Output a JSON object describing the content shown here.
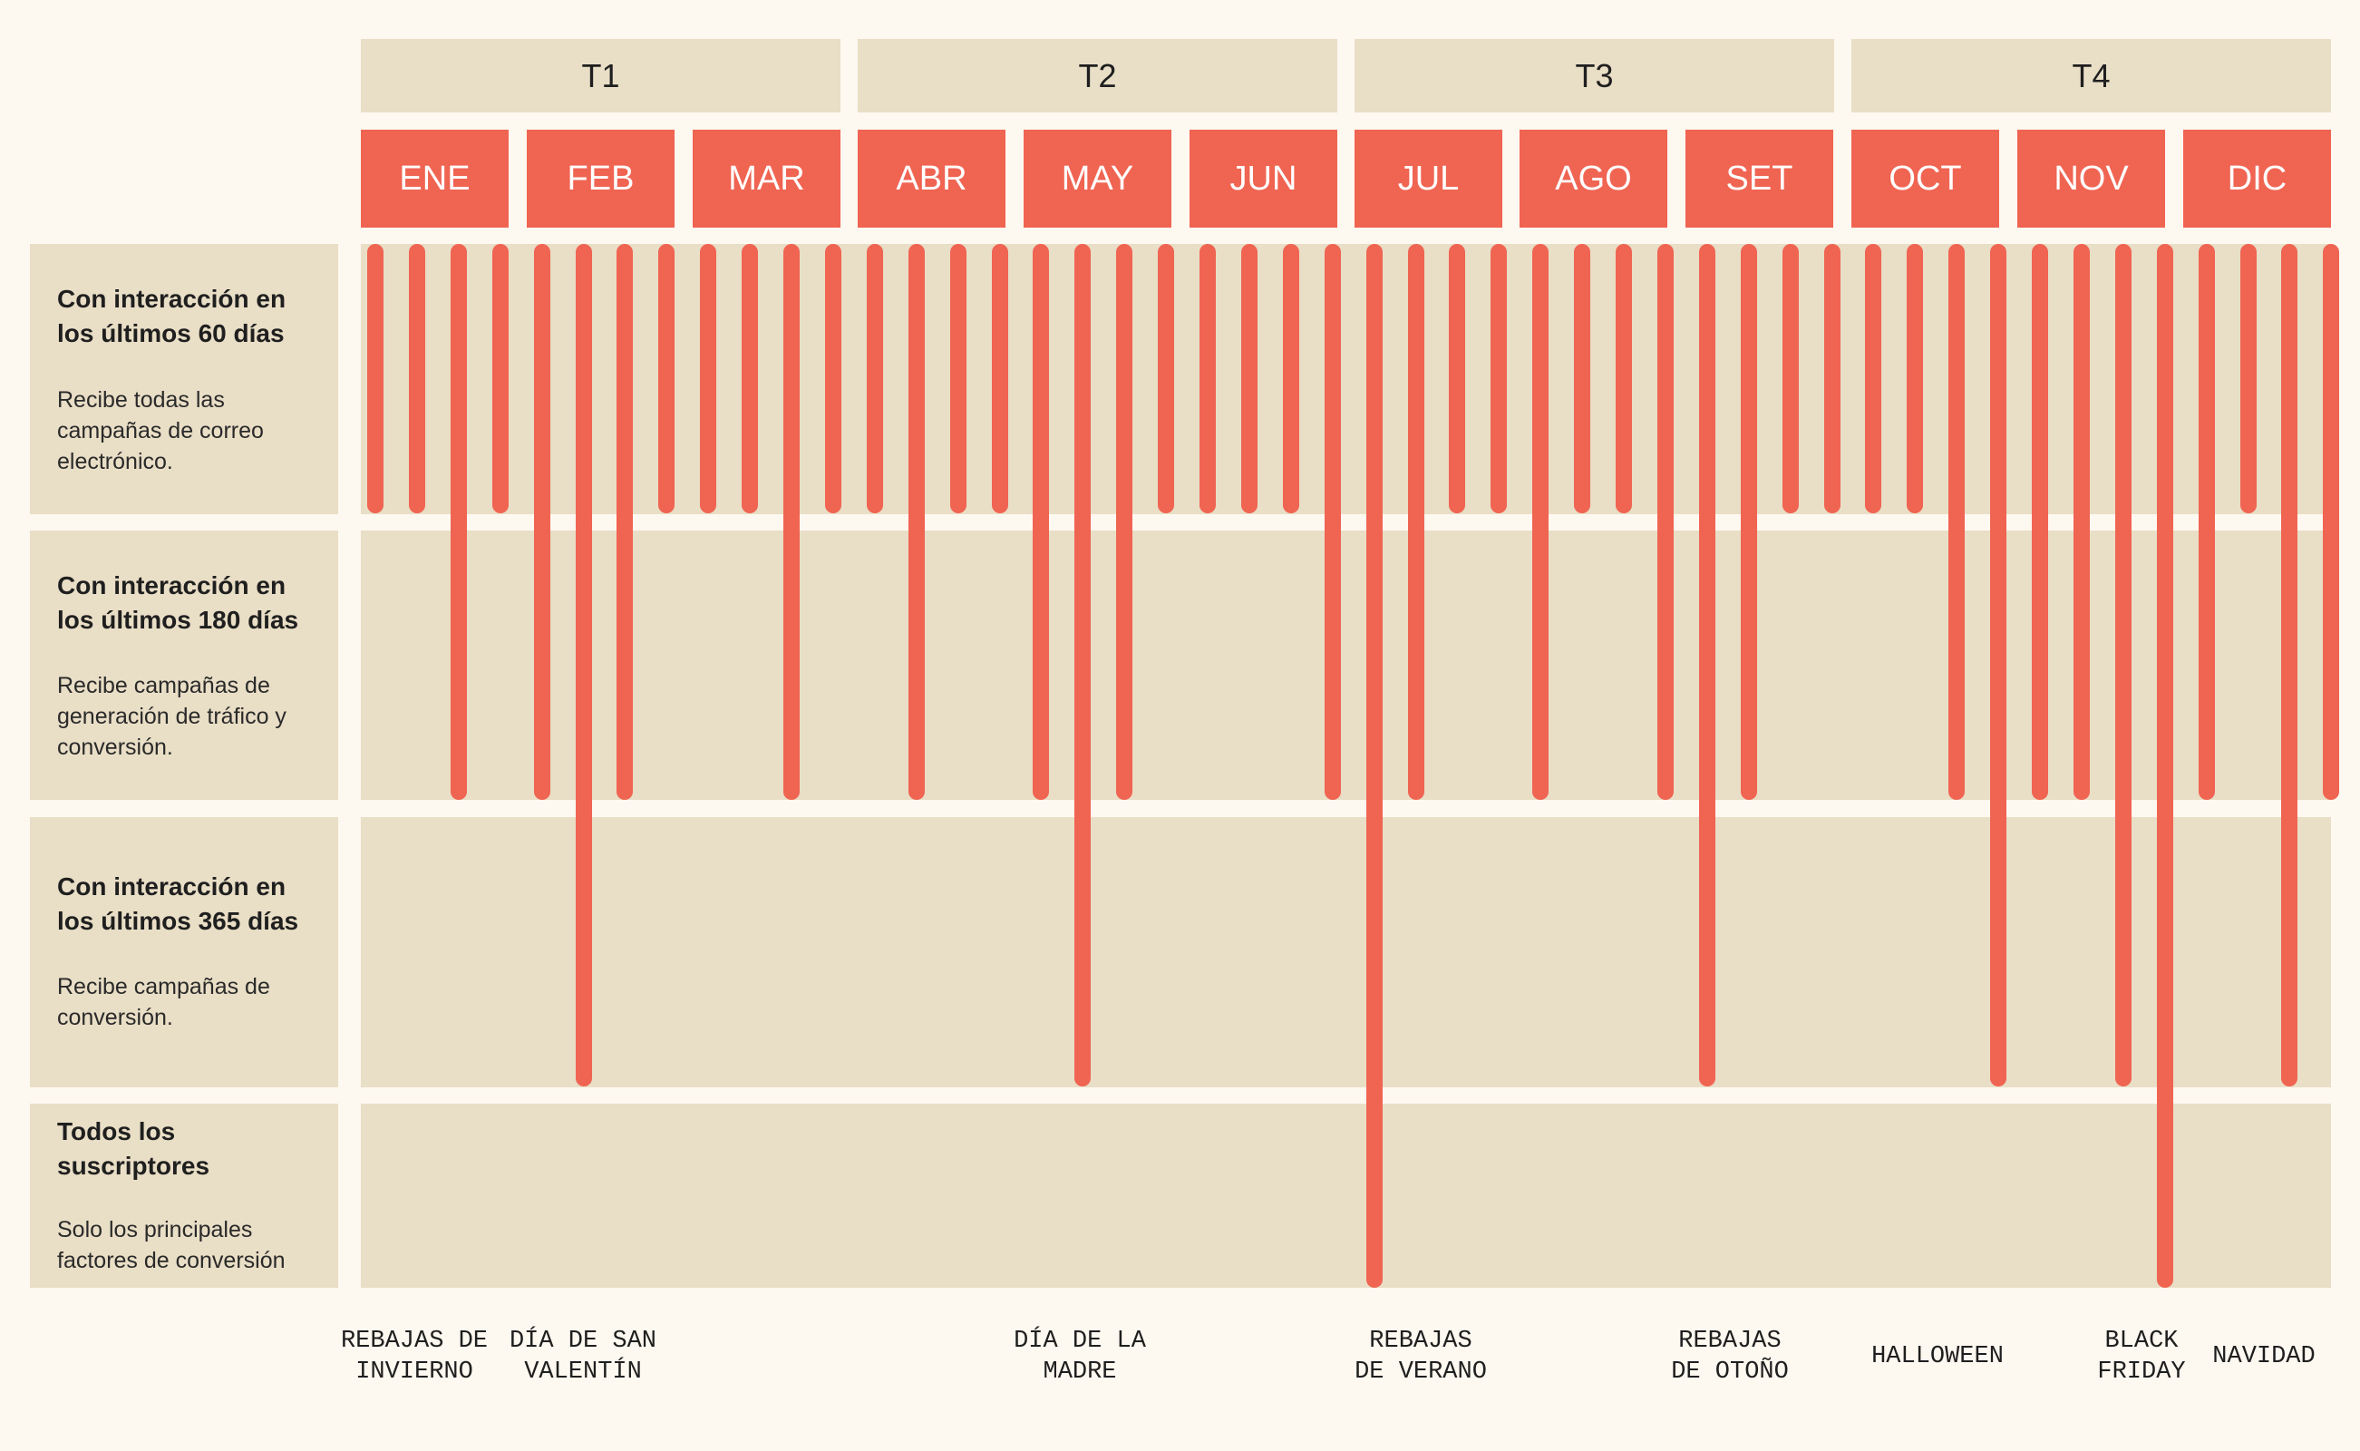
{
  "quarters": [
    "T1",
    "T2",
    "T3",
    "T4"
  ],
  "months": [
    "ENE",
    "FEB",
    "MAR",
    "ABR",
    "MAY",
    "JUN",
    "JUL",
    "AGO",
    "SET",
    "OCT",
    "NOV",
    "DIC"
  ],
  "segments": [
    {
      "title": "Con interacción en\nlos últimos 60 días",
      "description": "Recibe todas las\ncampañas de correo\nelectrónico."
    },
    {
      "title": "Con interacción en\nlos últimos 180 días",
      "description": "Recibe campañas de\ngeneración de tráfico y\nconversión."
    },
    {
      "title": "Con interacción en\nlos últimos 365 días",
      "description": "Recibe campañas de\nconversión."
    },
    {
      "title": "Todos los\nsuscriptores",
      "description": "Solo los principales\nfactores de conversión"
    }
  ],
  "campaign_depths": [
    1,
    1,
    2,
    1,
    2,
    3,
    2,
    1,
    1,
    1,
    2,
    1,
    1,
    2,
    1,
    1,
    2,
    3,
    2,
    1,
    1,
    1,
    1,
    2,
    4,
    2,
    1,
    1,
    2,
    1,
    1,
    2,
    3,
    2,
    1,
    1,
    1,
    1,
    2,
    3,
    2,
    2,
    3,
    4,
    2,
    1,
    3,
    2
  ],
  "events": [
    {
      "label": "REBAJAS DE\nINVIERNO"
    },
    {
      "label": "DÍA DE SAN\nVALENTÍN"
    },
    {
      "label": "DÍA DE LA\nMADRE"
    },
    {
      "label": "REBAJAS\nDE VERANO"
    },
    {
      "label": "REBAJAS\nDE OTOÑO"
    },
    {
      "label": "HALLOWEEN"
    },
    {
      "label": "BLACK\nFRIDAY"
    },
    {
      "label": "NAVIDAD"
    }
  ],
  "colors": {
    "accent": "#f06452",
    "panel": "#e9dec6",
    "background": "#fdf8f0"
  }
}
